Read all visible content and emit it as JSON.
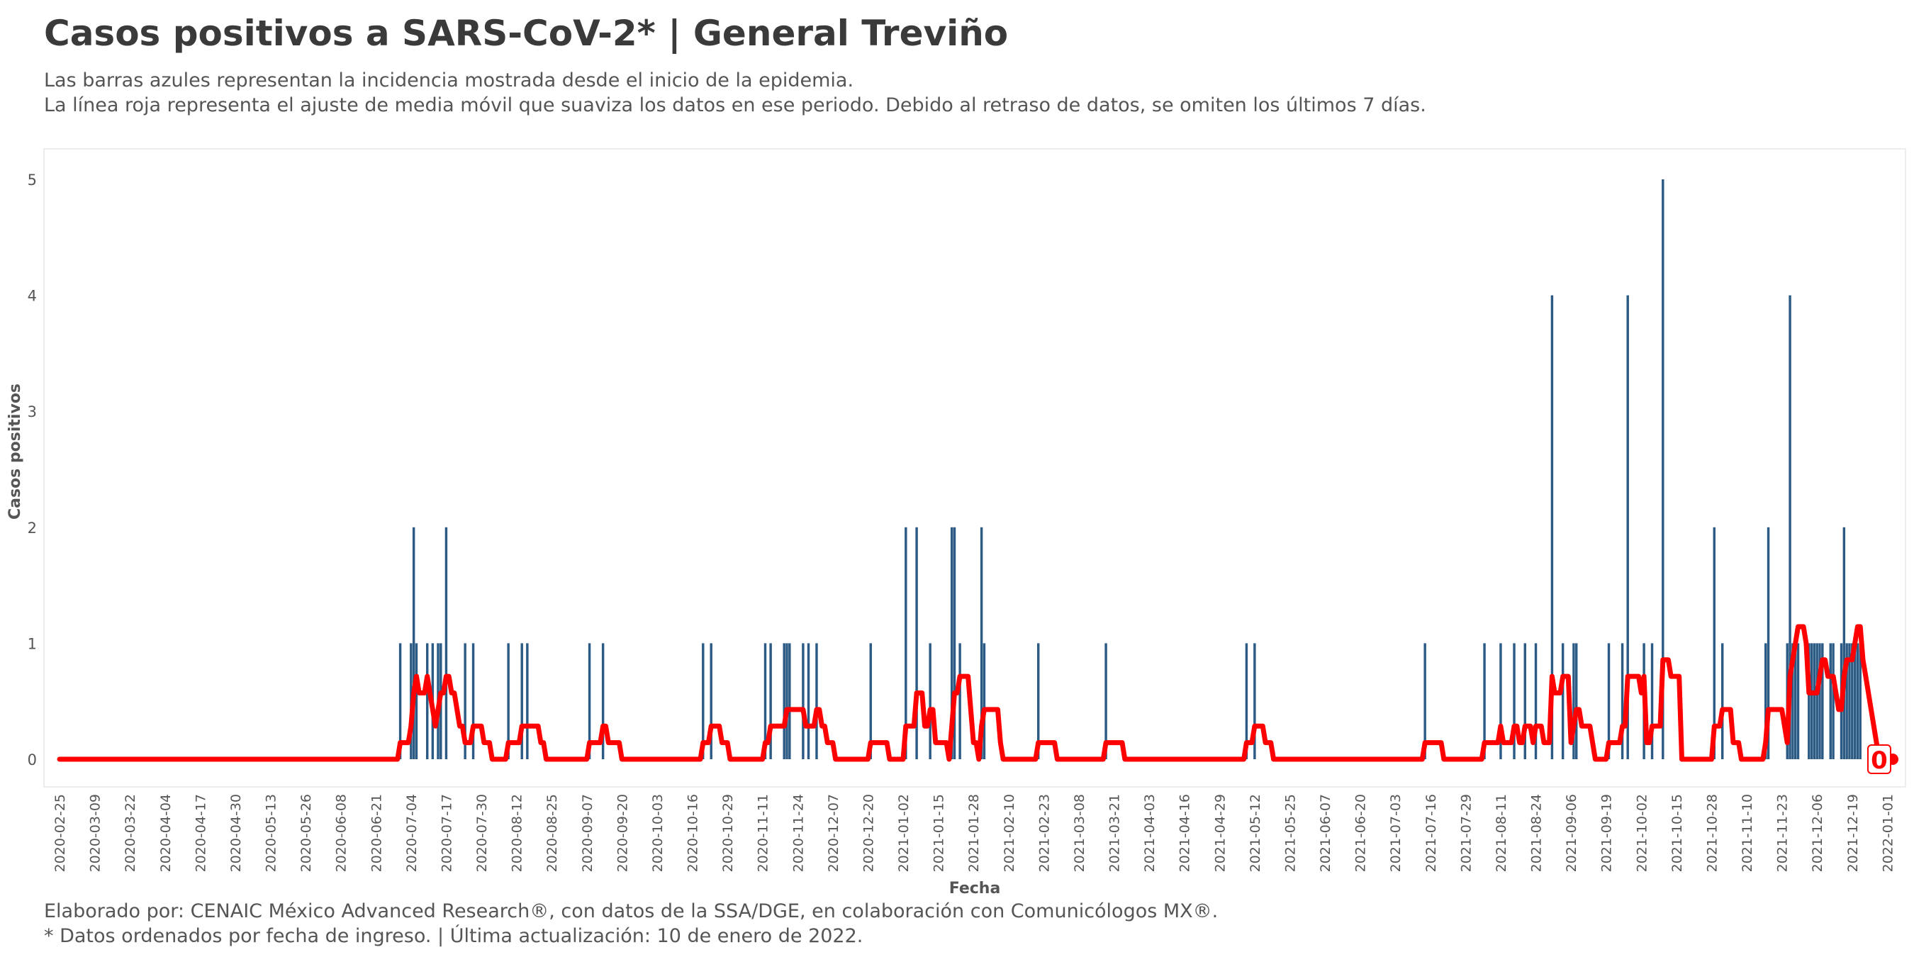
{
  "title": "Casos positivos a SARS-CoV-2* | General Treviño",
  "subtitle_line1": "Las barras azules representan la incidencia mostrada desde el inicio de la epidemia.",
  "subtitle_line2": "La línea roja representa el ajuste de media móvil que suaviza los datos en ese periodo. Debido al retraso de datos, se omiten los últimos 7 días.",
  "caption_line1": "Elaborado por: CENAIC México Advanced Research®, con datos de la SSA/DGE, en colaboración con Comunicólogos MX®.",
  "caption_line2": "* Datos ordenados por fecha de ingreso. | Última actualización: 10 de enero de 2022.",
  "chart_data": {
    "type": "bar",
    "xlabel": "Fecha",
    "ylabel": "Casos positivos",
    "x_start": "2020-02-25",
    "x_end": "2022-01-03",
    "ylim": [
      0,
      5
    ],
    "yticks": [
      0,
      1,
      2,
      3,
      4,
      5
    ],
    "xtick_labels": [
      "2020-02-25",
      "2020-03-09",
      "2020-03-22",
      "2020-04-04",
      "2020-04-17",
      "2020-04-30",
      "2020-05-13",
      "2020-05-26",
      "2020-06-08",
      "2020-06-21",
      "2020-07-04",
      "2020-07-17",
      "2020-07-30",
      "2020-08-12",
      "2020-08-25",
      "2020-09-07",
      "2020-09-20",
      "2020-10-03",
      "2020-10-16",
      "2020-10-29",
      "2020-11-11",
      "2020-11-24",
      "2020-12-07",
      "2020-12-20",
      "2021-01-02",
      "2021-01-15",
      "2021-01-28",
      "2021-02-10",
      "2021-02-23",
      "2021-03-08",
      "2021-03-21",
      "2021-04-03",
      "2021-04-16",
      "2021-04-29",
      "2021-05-12",
      "2021-05-25",
      "2021-06-07",
      "2021-06-20",
      "2021-07-03",
      "2021-07-16",
      "2021-07-29",
      "2021-08-11",
      "2021-08-24",
      "2021-09-06",
      "2021-09-19",
      "2021-10-02",
      "2021-10-15",
      "2021-10-28",
      "2021-11-10",
      "2021-11-23",
      "2021-12-06",
      "2021-12-19",
      "2022-01-01"
    ],
    "bars_color": "#2b5a85",
    "line_color": "#ff0000",
    "bars": [
      {
        "date": "2020-06-30",
        "value": 1
      },
      {
        "date": "2020-07-04",
        "value": 1
      },
      {
        "date": "2020-07-05",
        "value": 2
      },
      {
        "date": "2020-07-06",
        "value": 1
      },
      {
        "date": "2020-07-10",
        "value": 1
      },
      {
        "date": "2020-07-12",
        "value": 1
      },
      {
        "date": "2020-07-14",
        "value": 1
      },
      {
        "date": "2020-07-15",
        "value": 1
      },
      {
        "date": "2020-07-17",
        "value": 2
      },
      {
        "date": "2020-07-24",
        "value": 1
      },
      {
        "date": "2020-07-27",
        "value": 1
      },
      {
        "date": "2020-08-09",
        "value": 1
      },
      {
        "date": "2020-08-14",
        "value": 1
      },
      {
        "date": "2020-08-16",
        "value": 1
      },
      {
        "date": "2020-09-08",
        "value": 1
      },
      {
        "date": "2020-09-13",
        "value": 1
      },
      {
        "date": "2020-10-20",
        "value": 1
      },
      {
        "date": "2020-10-23",
        "value": 1
      },
      {
        "date": "2020-11-12",
        "value": 1
      },
      {
        "date": "2020-11-14",
        "value": 1
      },
      {
        "date": "2020-11-19",
        "value": 1
      },
      {
        "date": "2020-11-20",
        "value": 1
      },
      {
        "date": "2020-11-21",
        "value": 1
      },
      {
        "date": "2020-11-26",
        "value": 1
      },
      {
        "date": "2020-11-28",
        "value": 1
      },
      {
        "date": "2020-12-01",
        "value": 1
      },
      {
        "date": "2020-12-21",
        "value": 1
      },
      {
        "date": "2021-01-03",
        "value": 2
      },
      {
        "date": "2021-01-07",
        "value": 2
      },
      {
        "date": "2021-01-12",
        "value": 1
      },
      {
        "date": "2021-01-20",
        "value": 2
      },
      {
        "date": "2021-01-21",
        "value": 2
      },
      {
        "date": "2021-01-23",
        "value": 1
      },
      {
        "date": "2021-01-31",
        "value": 2
      },
      {
        "date": "2021-02-01",
        "value": 1
      },
      {
        "date": "2021-02-21",
        "value": 1
      },
      {
        "date": "2021-03-18",
        "value": 1
      },
      {
        "date": "2021-05-09",
        "value": 1
      },
      {
        "date": "2021-05-12",
        "value": 1
      },
      {
        "date": "2021-07-14",
        "value": 1
      },
      {
        "date": "2021-08-05",
        "value": 1
      },
      {
        "date": "2021-08-11",
        "value": 1
      },
      {
        "date": "2021-08-16",
        "value": 1
      },
      {
        "date": "2021-08-20",
        "value": 1
      },
      {
        "date": "2021-08-24",
        "value": 1
      },
      {
        "date": "2021-08-30",
        "value": 4
      },
      {
        "date": "2021-09-03",
        "value": 1
      },
      {
        "date": "2021-09-07",
        "value": 1
      },
      {
        "date": "2021-09-08",
        "value": 1
      },
      {
        "date": "2021-09-20",
        "value": 1
      },
      {
        "date": "2021-09-25",
        "value": 1
      },
      {
        "date": "2021-09-27",
        "value": 4
      },
      {
        "date": "2021-10-03",
        "value": 1
      },
      {
        "date": "2021-10-06",
        "value": 1
      },
      {
        "date": "2021-10-10",
        "value": 5
      },
      {
        "date": "2021-10-29",
        "value": 2
      },
      {
        "date": "2021-11-01",
        "value": 1
      },
      {
        "date": "2021-11-17",
        "value": 1
      },
      {
        "date": "2021-11-18",
        "value": 2
      },
      {
        "date": "2021-11-25",
        "value": 1
      },
      {
        "date": "2021-11-26",
        "value": 4
      },
      {
        "date": "2021-11-27",
        "value": 1
      },
      {
        "date": "2021-11-28",
        "value": 1
      },
      {
        "date": "2021-11-29",
        "value": 1
      },
      {
        "date": "2021-12-03",
        "value": 1
      },
      {
        "date": "2021-12-04",
        "value": 1
      },
      {
        "date": "2021-12-05",
        "value": 1
      },
      {
        "date": "2021-12-06",
        "value": 1
      },
      {
        "date": "2021-12-07",
        "value": 1
      },
      {
        "date": "2021-12-08",
        "value": 1
      },
      {
        "date": "2021-12-11",
        "value": 1
      },
      {
        "date": "2021-12-12",
        "value": 1
      },
      {
        "date": "2021-12-15",
        "value": 1
      },
      {
        "date": "2021-12-16",
        "value": 2
      },
      {
        "date": "2021-12-17",
        "value": 1
      },
      {
        "date": "2021-12-18",
        "value": 1
      },
      {
        "date": "2021-12-19",
        "value": 1
      },
      {
        "date": "2021-12-20",
        "value": 1
      },
      {
        "date": "2021-12-21",
        "value": 1
      },
      {
        "date": "2021-12-22",
        "value": 1
      }
    ],
    "moving_average_end": "2022-01-03",
    "end_label": "0"
  }
}
